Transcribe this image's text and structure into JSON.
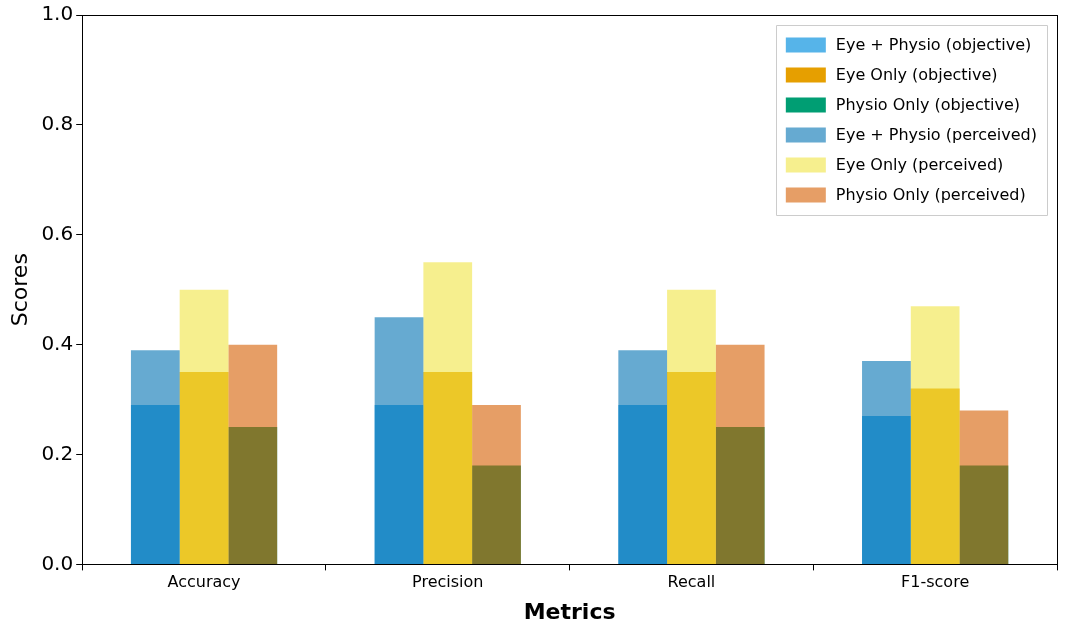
{
  "chart_data": {
    "type": "bar",
    "x_label": "Metrics",
    "y_label": "Scores",
    "categories": [
      "Accuracy",
      "Precision",
      "Recall",
      "F1-score"
    ],
    "series": [
      {
        "name": "Eye + Physio (objective)",
        "color": "#56B4E9",
        "values": [
          0.29,
          0.29,
          0.29,
          0.27
        ]
      },
      {
        "name": "Eye Only (objective)",
        "color": "#E69F00",
        "values": [
          0.35,
          0.35,
          0.35,
          0.32
        ]
      },
      {
        "name": "Physio Only (objective)",
        "color": "#009E73",
        "values": [
          0.25,
          0.18,
          0.25,
          0.18
        ]
      },
      {
        "name": "Eye + Physio (perceived)",
        "color": "#0072B2",
        "values": [
          0.39,
          0.45,
          0.39,
          0.37
        ]
      },
      {
        "name": "Eye Only (perceived)",
        "color": "#F0E442",
        "values": [
          0.5,
          0.55,
          0.5,
          0.47
        ]
      },
      {
        "name": "Physio Only (perceived)",
        "color": "#D55E00",
        "values": [
          0.4,
          0.29,
          0.4,
          0.28
        ]
      }
    ],
    "ylim": [
      0,
      1
    ],
    "yticks": [
      {
        "value": 0,
        "label": "0.0"
      },
      0.2,
      0.4,
      0.6,
      0.8,
      {
        "value": 1,
        "label": "1.0"
      }
    ],
    "grid": false,
    "legend": "upper right"
  }
}
